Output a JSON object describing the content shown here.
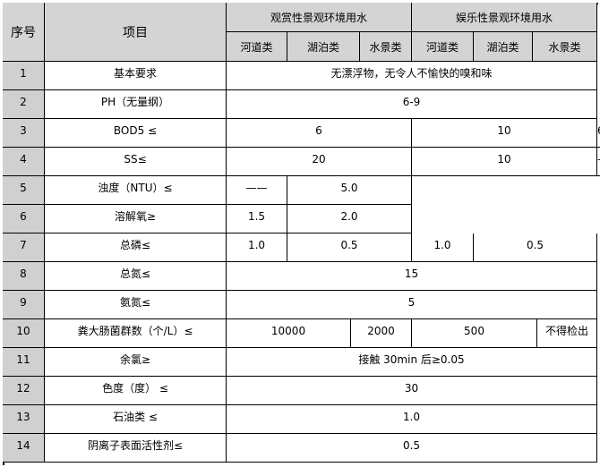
{
  "header": {
    "seq": "序号",
    "item": "项目",
    "groups": [
      "观赏性景观环境用水",
      "娱乐性景观环境用水"
    ],
    "subs": [
      "河道类",
      "湖泊类",
      "水景类",
      "河道类",
      "湖泊类",
      "水景类"
    ]
  },
  "rows": [
    {
      "no": "1",
      "item": "基本要求",
      "values": [
        "无漂浮物，无令人不愉快的嗅和味"
      ]
    },
    {
      "no": "2",
      "item": "PH（无量纲）",
      "values": [
        "6-9"
      ]
    },
    {
      "no": "3",
      "item": "BOD5 ≤",
      "values": [
        "6",
        "10",
        "6"
      ]
    },
    {
      "no": "4",
      "item": "SS≤",
      "values": [
        "20",
        "10",
        "——"
      ]
    },
    {
      "no": "5",
      "item": "浊度（NTU）≤",
      "values": [
        "——",
        "5.0"
      ]
    },
    {
      "no": "6",
      "item": "溶解氧≥",
      "values": [
        "1.5",
        "2.0"
      ]
    },
    {
      "no": "7",
      "item": "总磷≤",
      "values": [
        "1.0",
        "0.5",
        "1.0",
        "0.5"
      ]
    },
    {
      "no": "8",
      "item": "总氮≤",
      "values": [
        "15"
      ]
    },
    {
      "no": "9",
      "item": "氨氮≤",
      "values": [
        "5"
      ]
    },
    {
      "no": "10",
      "item": "粪大肠菌群数（个/L）≤",
      "values": [
        "10000",
        "2000",
        "500",
        "不得检出"
      ]
    },
    {
      "no": "11",
      "item": "余氯≥",
      "values": [
        "接触 30min 后≥0.05"
      ]
    },
    {
      "no": "12",
      "item": "色度（度） ≤",
      "values": [
        "30"
      ]
    },
    {
      "no": "13",
      "item": "石油类 ≤",
      "values": [
        "1.0"
      ]
    },
    {
      "no": "14",
      "item": "阴离子表面活性剂≤",
      "values": [
        "0.5"
      ]
    }
  ]
}
